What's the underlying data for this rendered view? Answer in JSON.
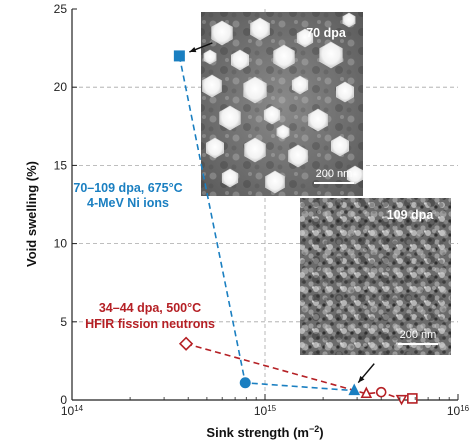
{
  "chart_data": {
    "type": "scatter",
    "xlabel": "Sink strength (m",
    "xlabel_exponent": "−2",
    "xlabel_suffix": ")",
    "ylabel": "Void swelling (%)",
    "x_scale": "log",
    "xlim": [
      100000000000000.0,
      1e+16
    ],
    "ylim": [
      0,
      25
    ],
    "x_ticks": [
      {
        "value": 100000000000000.0,
        "base": "10",
        "exp": "14"
      },
      {
        "value": 1000000000000000.0,
        "base": "10",
        "exp": "15"
      },
      {
        "value": 1e+16,
        "base": "10",
        "exp": "16"
      }
    ],
    "y_ticks": [
      "0",
      "5",
      "10",
      "15",
      "20",
      "25"
    ],
    "grid": "dashed",
    "series": [
      {
        "name": "70–109 dpa, 675°C",
        "name_line2": "4-MeV Ni ions",
        "color": "#1a7fc1",
        "line": "dashed",
        "points": [
          {
            "x": 360000000000000.0,
            "y": 22.0,
            "marker": "square",
            "filled": true
          },
          {
            "x": 790000000000000.0,
            "y": 1.1,
            "marker": "circle",
            "filled": true
          },
          {
            "x": 2900000000000000.0,
            "y": 0.6,
            "marker": "triangle",
            "filled": true
          }
        ]
      },
      {
        "name": "34–44 dpa, 500°C",
        "name_line2": "HFIR fission neutrons",
        "color": "#b52025",
        "line": "dashed",
        "points": [
          {
            "x": 390000000000000.0,
            "y": 3.6,
            "marker": "diamond",
            "filled": false
          },
          {
            "x": 3350000000000000.0,
            "y": 0.4,
            "marker": "triangle",
            "filled": false
          },
          {
            "x": 4000000000000000.0,
            "y": 0.5,
            "marker": "circle",
            "filled": false
          },
          {
            "x": 5100000000000000.0,
            "y": 0.05,
            "marker": "triangle-down",
            "filled": false
          },
          {
            "x": 5800000000000000.0,
            "y": 0.1,
            "marker": "square",
            "filled": false
          }
        ]
      }
    ],
    "insets": [
      {
        "label": "70 dpa",
        "scale_bar": "200 nm"
      },
      {
        "label": "109 dpa",
        "scale_bar": "200 nm"
      }
    ]
  }
}
